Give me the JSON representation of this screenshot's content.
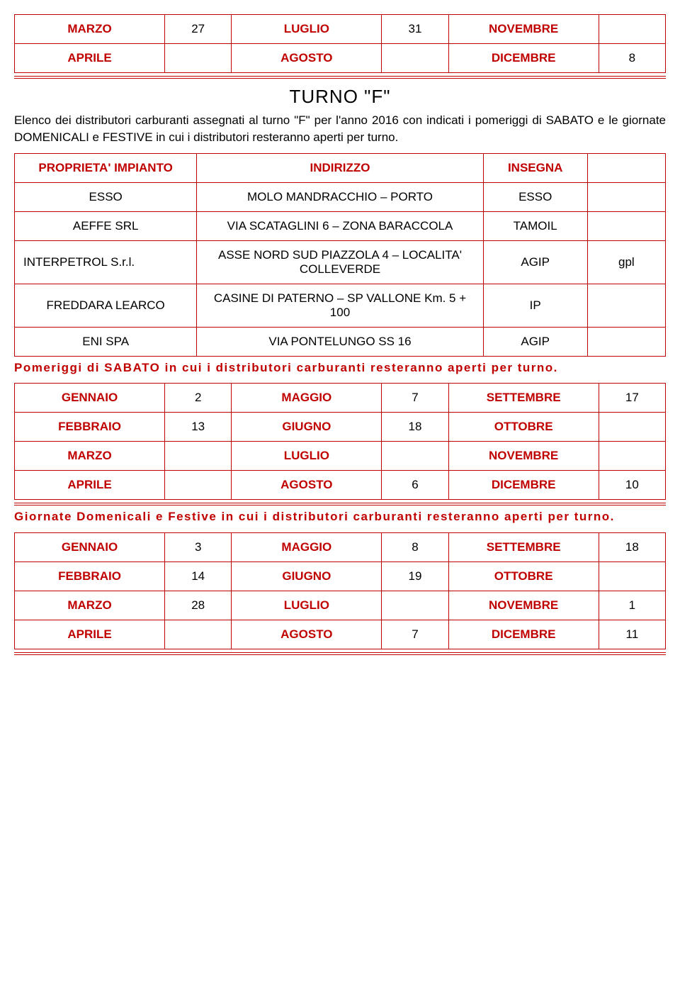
{
  "colors": {
    "accent": "#c00000",
    "text": "#000000",
    "bg": "#ffffff"
  },
  "fonts": {
    "family": "Verdana",
    "body_size_pt": 13,
    "title_size_pt": 20
  },
  "top_table": {
    "rows": [
      {
        "m1": "MARZO",
        "v1": "27",
        "m2": "LUGLIO",
        "v2": "31",
        "m3": "NOVEMBRE",
        "v3": ""
      },
      {
        "m1": "APRILE",
        "v1": "",
        "m2": "AGOSTO",
        "v2": "",
        "m3": "DICEMBRE",
        "v3": "8"
      }
    ]
  },
  "turno_title": "TURNO \"F\"",
  "intro_para": "Elenco dei distributori carburanti assegnati al turno \"F\" per l'anno 2016 con indicati i pomeriggi di SABATO e le giornate DOMENICALI e FESTIVE in cui i distributori resteranno aperti per turno.",
  "prop_table": {
    "headers": {
      "prop": "PROPRIETA' IMPIANTO",
      "addr": "INDIRIZZO",
      "ins": "INSEGNA",
      "extra": ""
    },
    "rows": [
      {
        "prop": "ESSO",
        "addr": "MOLO MANDRACCHIO – PORTO",
        "ins": "ESSO",
        "extra": ""
      },
      {
        "prop": "AEFFE SRL",
        "addr": "VIA SCATAGLINI 6 – ZONA BARACCOLA",
        "ins": "TAMOIL",
        "extra": ""
      },
      {
        "prop": "INTERPETROL S.r.l.",
        "addr": "ASSE NORD SUD PIAZZOLA 4 – LOCALITA' COLLEVERDE",
        "ins": "AGIP",
        "extra": "gpl"
      },
      {
        "prop": "FREDDARA LEARCO",
        "addr": "CASINE DI PATERNO – SP VALLONE Km. 5 + 100",
        "ins": "IP",
        "extra": ""
      },
      {
        "prop": "ENI SPA",
        "addr": "VIA PONTELUNGO SS 16",
        "ins": "AGIP",
        "extra": ""
      }
    ]
  },
  "sabato_para": "Pomeriggi di SABATO in cui i distributori carburanti resteranno aperti per turno.",
  "sabato_table": {
    "rows": [
      {
        "m1": "GENNAIO",
        "v1": "2",
        "m2": "MAGGIO",
        "v2": "7",
        "m3": "SETTEMBRE",
        "v3": "17"
      },
      {
        "m1": "FEBBRAIO",
        "v1": "13",
        "m2": "GIUGNO",
        "v2": "18",
        "m3": "OTTOBRE",
        "v3": ""
      },
      {
        "m1": "MARZO",
        "v1": "",
        "m2": "LUGLIO",
        "v2": "",
        "m3": "NOVEMBRE",
        "v3": ""
      },
      {
        "m1": "APRILE",
        "v1": "",
        "m2": "AGOSTO",
        "v2": "6",
        "m3": "DICEMBRE",
        "v3": "10"
      }
    ]
  },
  "festive_para": "Giornate Domenicali e Festive in cui i distributori carburanti resteranno aperti per turno.",
  "festive_table": {
    "rows": [
      {
        "m1": "GENNAIO",
        "v1": "3",
        "m2": "MAGGIO",
        "v2": "8",
        "m3": "SETTEMBRE",
        "v3": "18"
      },
      {
        "m1": "FEBBRAIO",
        "v1": "14",
        "m2": "GIUGNO",
        "v2": "19",
        "m3": "OTTOBRE",
        "v3": ""
      },
      {
        "m1": "MARZO",
        "v1": "28",
        "m2": "LUGLIO",
        "v2": "",
        "m3": "NOVEMBRE",
        "v3": "1"
      },
      {
        "m1": "APRILE",
        "v1": "",
        "m2": "AGOSTO",
        "v2": "7",
        "m3": "DICEMBRE",
        "v3": "11"
      }
    ]
  }
}
